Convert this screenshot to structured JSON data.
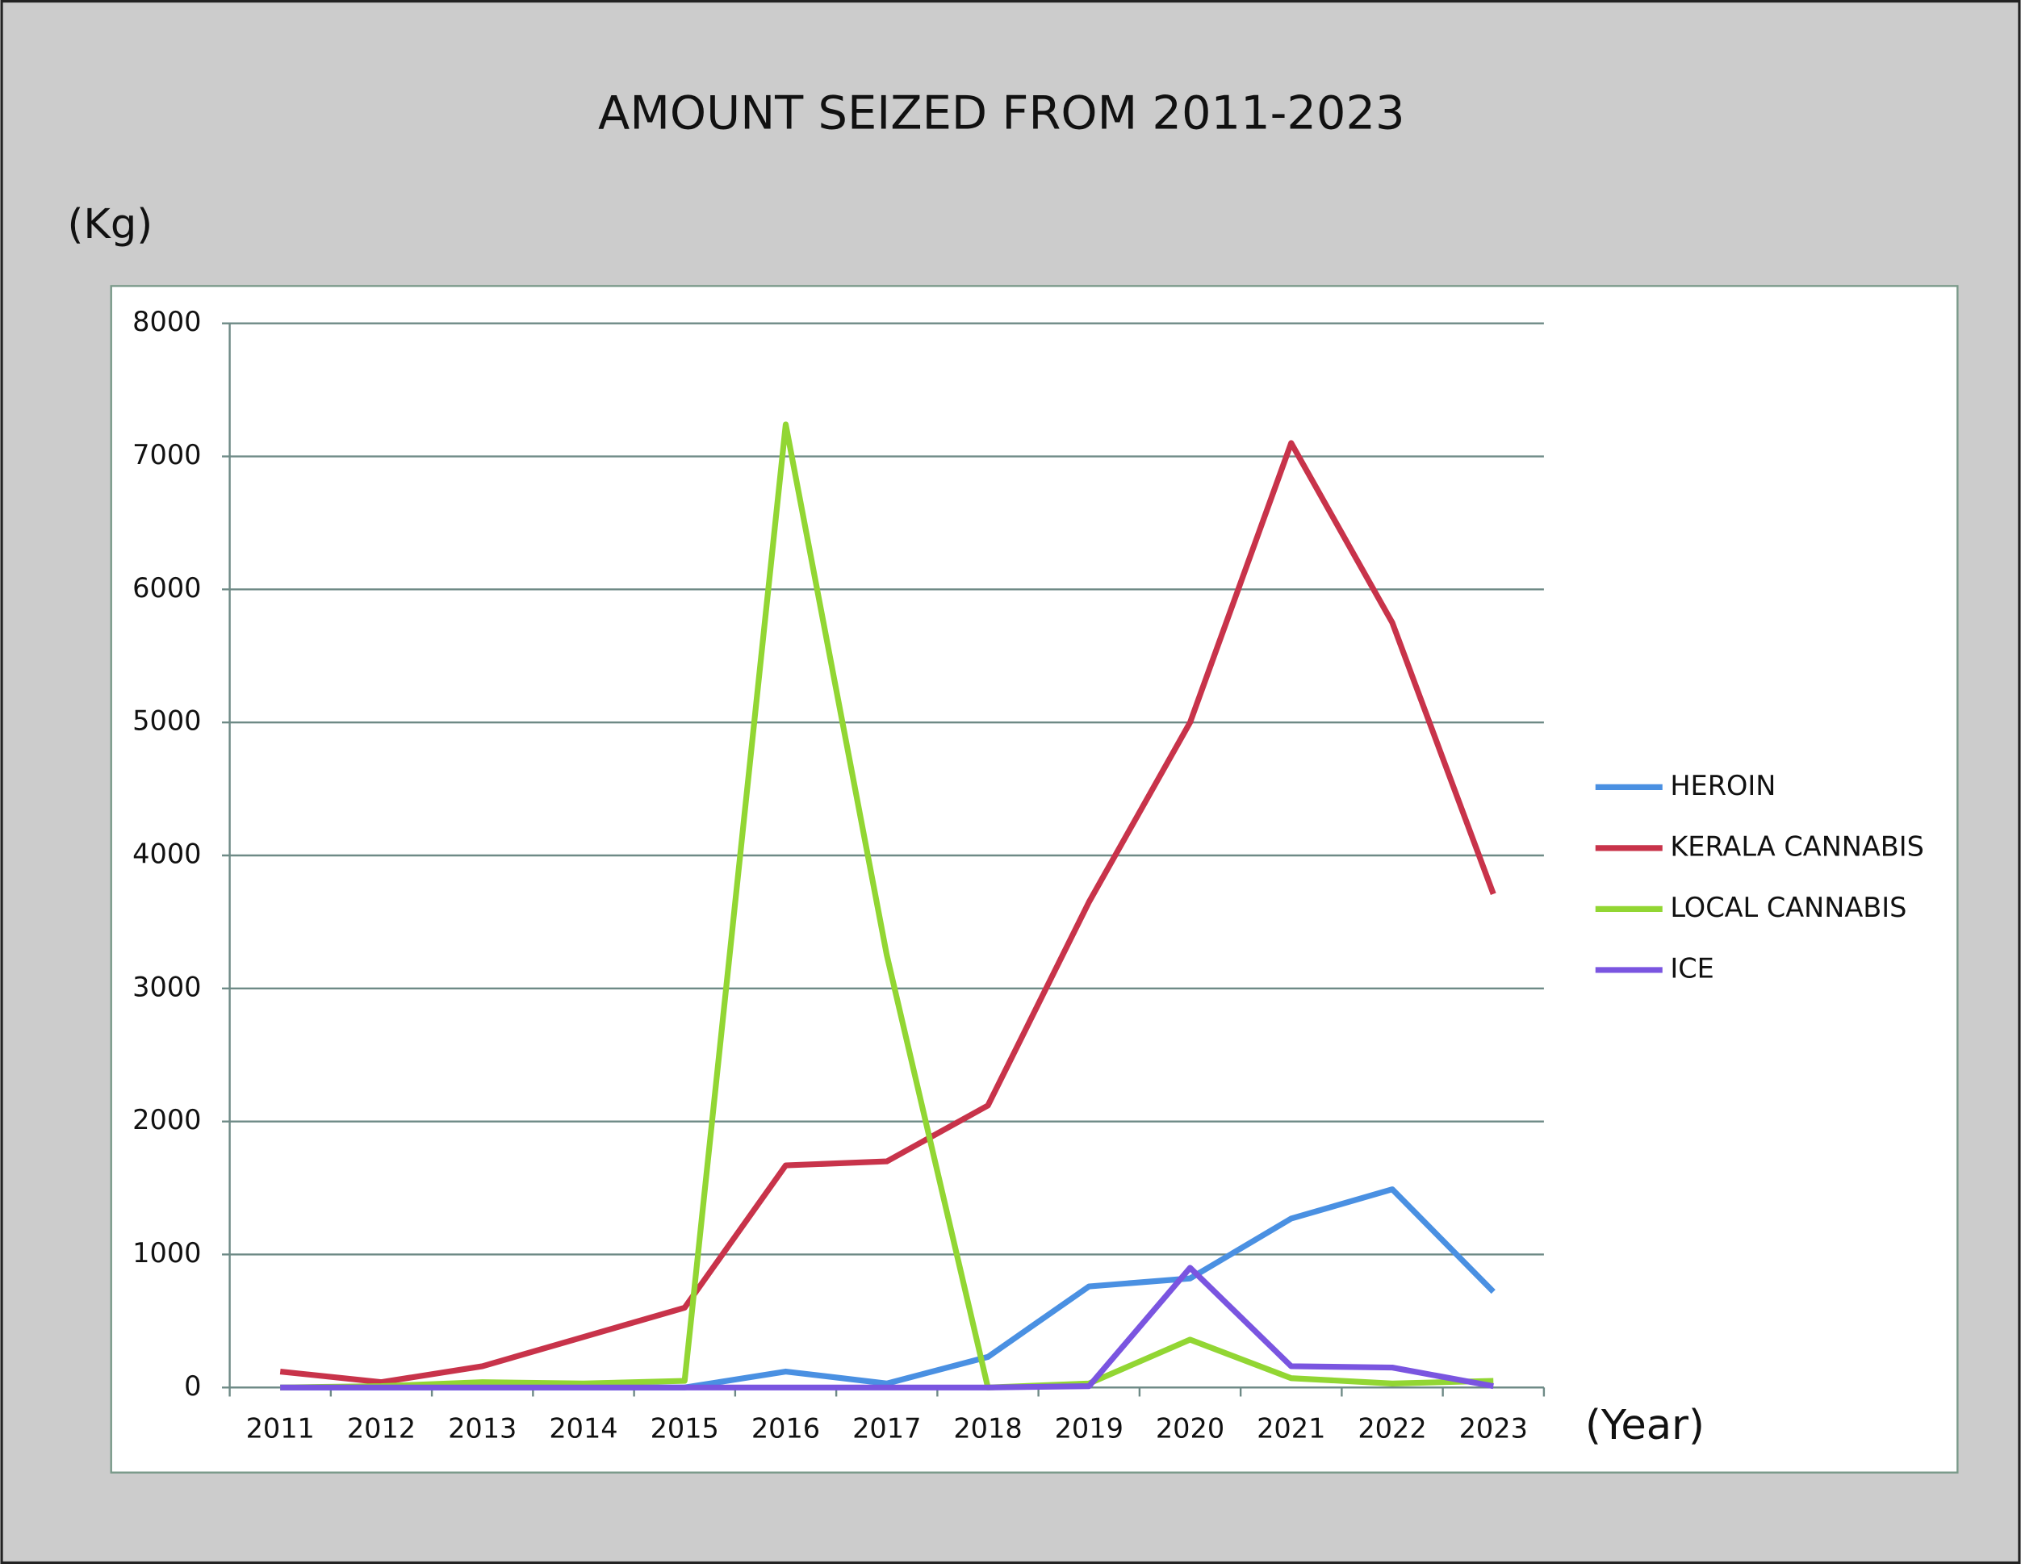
{
  "chart_data": {
    "type": "line",
    "title": "AMOUNT SEIZED FROM 2011-2023",
    "y_label": "(Kg)",
    "x_label": "(Year)",
    "categories": [
      "2011",
      "2012",
      "2013",
      "2014",
      "2015",
      "2016",
      "2017",
      "2018",
      "2019",
      "2020",
      "2021",
      "2022",
      "2023"
    ],
    "series": [
      {
        "name": "HEROIN",
        "color": "#4a90e2",
        "values": [
          0,
          0,
          0,
          0,
          0,
          120,
          30,
          230,
          760,
          820,
          1270,
          1490,
          720
        ]
      },
      {
        "name": "KERALA CANNABIS",
        "color": "#c8334a",
        "values": [
          120,
          40,
          160,
          380,
          600,
          1670,
          1700,
          2120,
          3650,
          5000,
          7100,
          5750,
          3710
        ]
      },
      {
        "name": "LOCAL CANNABIS",
        "color": "#92d633",
        "values": [
          0,
          10,
          40,
          30,
          50,
          7240,
          3250,
          0,
          30,
          360,
          70,
          30,
          50
        ]
      },
      {
        "name": "ICE",
        "color": "#7a55e0",
        "values": [
          0,
          0,
          0,
          0,
          0,
          0,
          0,
          0,
          10,
          900,
          160,
          150,
          10
        ]
      }
    ],
    "ylim": [
      0,
      8000
    ],
    "yticks": [
      0,
      1000,
      2000,
      3000,
      4000,
      5000,
      6000,
      7000,
      8000
    ],
    "grid": true,
    "legend": "right"
  }
}
